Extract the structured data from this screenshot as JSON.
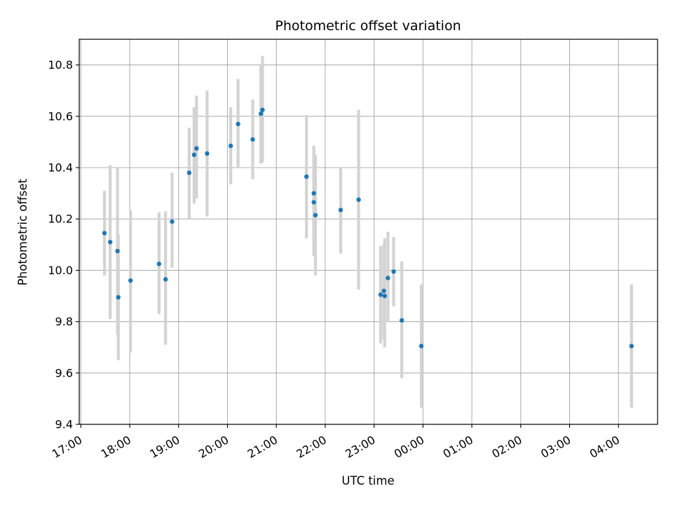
{
  "chart_data": {
    "type": "scatter",
    "title": "Photometric offset variation",
    "xlabel": "UTC time",
    "ylabel": "Photometric offset",
    "xlim": [
      "16:58",
      "04:48 next day"
    ],
    "ylim": [
      9.4,
      10.9
    ],
    "grid": true,
    "x_ticks": [
      "17:00",
      "18:00",
      "19:00",
      "20:00",
      "21:00",
      "22:00",
      "23:00",
      "00:00",
      "01:00",
      "02:00",
      "03:00",
      "04:00"
    ],
    "y_ticks": [
      "9.4",
      "9.6",
      "9.8",
      "10.0",
      "10.2",
      "10.4",
      "10.6",
      "10.8"
    ],
    "point_color": "#1f77b4",
    "errorbar_color": "#d3d3d3",
    "points": [
      {
        "x": "17:29",
        "y": 10.145,
        "ylo": 9.98,
        "yhi": 10.31
      },
      {
        "x": "17:36",
        "y": 10.11,
        "ylo": 9.81,
        "yhi": 10.41
      },
      {
        "x": "17:45",
        "y": 10.075,
        "ylo": 9.75,
        "yhi": 10.4
      },
      {
        "x": "17:46",
        "y": 9.895,
        "ylo": 9.65,
        "yhi": 10.14
      },
      {
        "x": "18:01",
        "y": 9.96,
        "ylo": 9.68,
        "yhi": 10.235
      },
      {
        "x": "18:36",
        "y": 10.025,
        "ylo": 9.83,
        "yhi": 10.225
      },
      {
        "x": "18:44",
        "y": 9.965,
        "ylo": 9.71,
        "yhi": 10.23
      },
      {
        "x": "18:52",
        "y": 10.19,
        "ylo": 10.01,
        "yhi": 10.38
      },
      {
        "x": "19:13",
        "y": 10.38,
        "ylo": 10.2,
        "yhi": 10.555
      },
      {
        "x": "19:19",
        "y": 10.45,
        "ylo": 10.26,
        "yhi": 10.635
      },
      {
        "x": "19:22",
        "y": 10.475,
        "ylo": 10.28,
        "yhi": 10.68
      },
      {
        "x": "19:35",
        "y": 10.455,
        "ylo": 10.21,
        "yhi": 10.7
      },
      {
        "x": "20:04",
        "y": 10.485,
        "ylo": 10.335,
        "yhi": 10.635
      },
      {
        "x": "20:13",
        "y": 10.57,
        "ylo": 10.4,
        "yhi": 10.745
      },
      {
        "x": "20:31",
        "y": 10.51,
        "ylo": 10.355,
        "yhi": 10.665
      },
      {
        "x": "20:41",
        "y": 10.61,
        "ylo": 10.415,
        "yhi": 10.8
      },
      {
        "x": "20:43",
        "y": 10.625,
        "ylo": 10.42,
        "yhi": 10.835
      },
      {
        "x": "21:37",
        "y": 10.365,
        "ylo": 10.125,
        "yhi": 10.605
      },
      {
        "x": "21:46",
        "y": 10.3,
        "ylo": 10.11,
        "yhi": 10.485
      },
      {
        "x": "21:46",
        "y": 10.265,
        "ylo": 10.055,
        "yhi": 10.43
      },
      {
        "x": "21:48",
        "y": 10.215,
        "ylo": 9.98,
        "yhi": 10.45
      },
      {
        "x": "22:19",
        "y": 10.235,
        "ylo": 10.065,
        "yhi": 10.4
      },
      {
        "x": "22:41",
        "y": 10.275,
        "ylo": 9.925,
        "yhi": 10.625
      },
      {
        "x": "23:08",
        "y": 9.905,
        "ylo": 9.715,
        "yhi": 10.095
      },
      {
        "x": "23:12",
        "y": 9.92,
        "ylo": 9.73,
        "yhi": 10.1
      },
      {
        "x": "23:13",
        "y": 9.9,
        "ylo": 9.7,
        "yhi": 10.125
      },
      {
        "x": "23:17",
        "y": 9.97,
        "ylo": 9.8,
        "yhi": 10.15
      },
      {
        "x": "23:24",
        "y": 9.995,
        "ylo": 9.86,
        "yhi": 10.13
      },
      {
        "x": "23:34",
        "y": 9.805,
        "ylo": 9.58,
        "yhi": 10.035
      },
      {
        "x": "23:58",
        "y": 9.705,
        "ylo": 9.465,
        "yhi": 9.945
      },
      {
        "x": "04:16 next day",
        "y": 9.705,
        "ylo": 9.465,
        "yhi": 9.945
      }
    ]
  }
}
